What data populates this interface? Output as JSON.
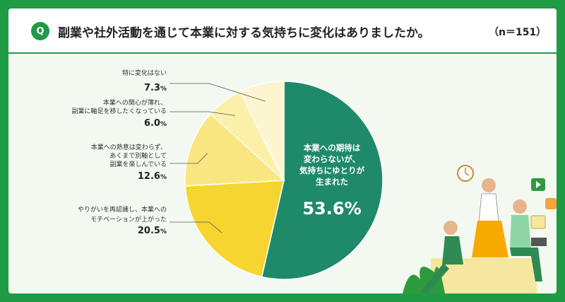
{
  "header": {
    "badge": "Q",
    "question": "副業や社外活動を通じて本業に対する気持ちに変化はありましたか。",
    "n": "（n＝151）"
  },
  "colors": {
    "frame": "#1f9a45",
    "card_bg": "#f3f9f1",
    "main_slice": "#1f8a6a"
  },
  "chart_data": {
    "type": "pie",
    "start": "12 o'clock, clockwise",
    "slices": [
      {
        "label_lines": [
          "本業への期待は",
          "変わらないが、",
          "気持ちにゆとりが",
          "生まれた"
        ],
        "value": 53.6,
        "value_text": "53.6",
        "unit": "%",
        "color": "#1f8a6a",
        "placement": "inside"
      },
      {
        "label_lines": [
          "やりがいを再認識し、本業への",
          "モチベーションが上がった"
        ],
        "value": 20.5,
        "value_text": "20.5",
        "unit": "%",
        "color": "#f7d531",
        "placement": "left"
      },
      {
        "label_lines": [
          "本業への熱意は変わらず、",
          "あくまで別軸として",
          "副業を楽しんでいる"
        ],
        "value": 12.6,
        "value_text": "12.6",
        "unit": "%",
        "color": "#f9e680",
        "placement": "left"
      },
      {
        "label_lines": [
          "本業への関心が薄れ、",
          "副業に軸足を移したくなっている"
        ],
        "value": 6.0,
        "value_text": "6.0",
        "unit": "%",
        "color": "#fcefa8",
        "placement": "left"
      },
      {
        "label_lines": [
          "特に変化はない"
        ],
        "value": 7.3,
        "value_text": "7.3",
        "unit": "%",
        "color": "#fdf5d0",
        "placement": "left"
      }
    ]
  },
  "illustration": {
    "clock_icon": "clock-icon",
    "play_icon": "play-icon",
    "image_icon": "image-icon"
  }
}
